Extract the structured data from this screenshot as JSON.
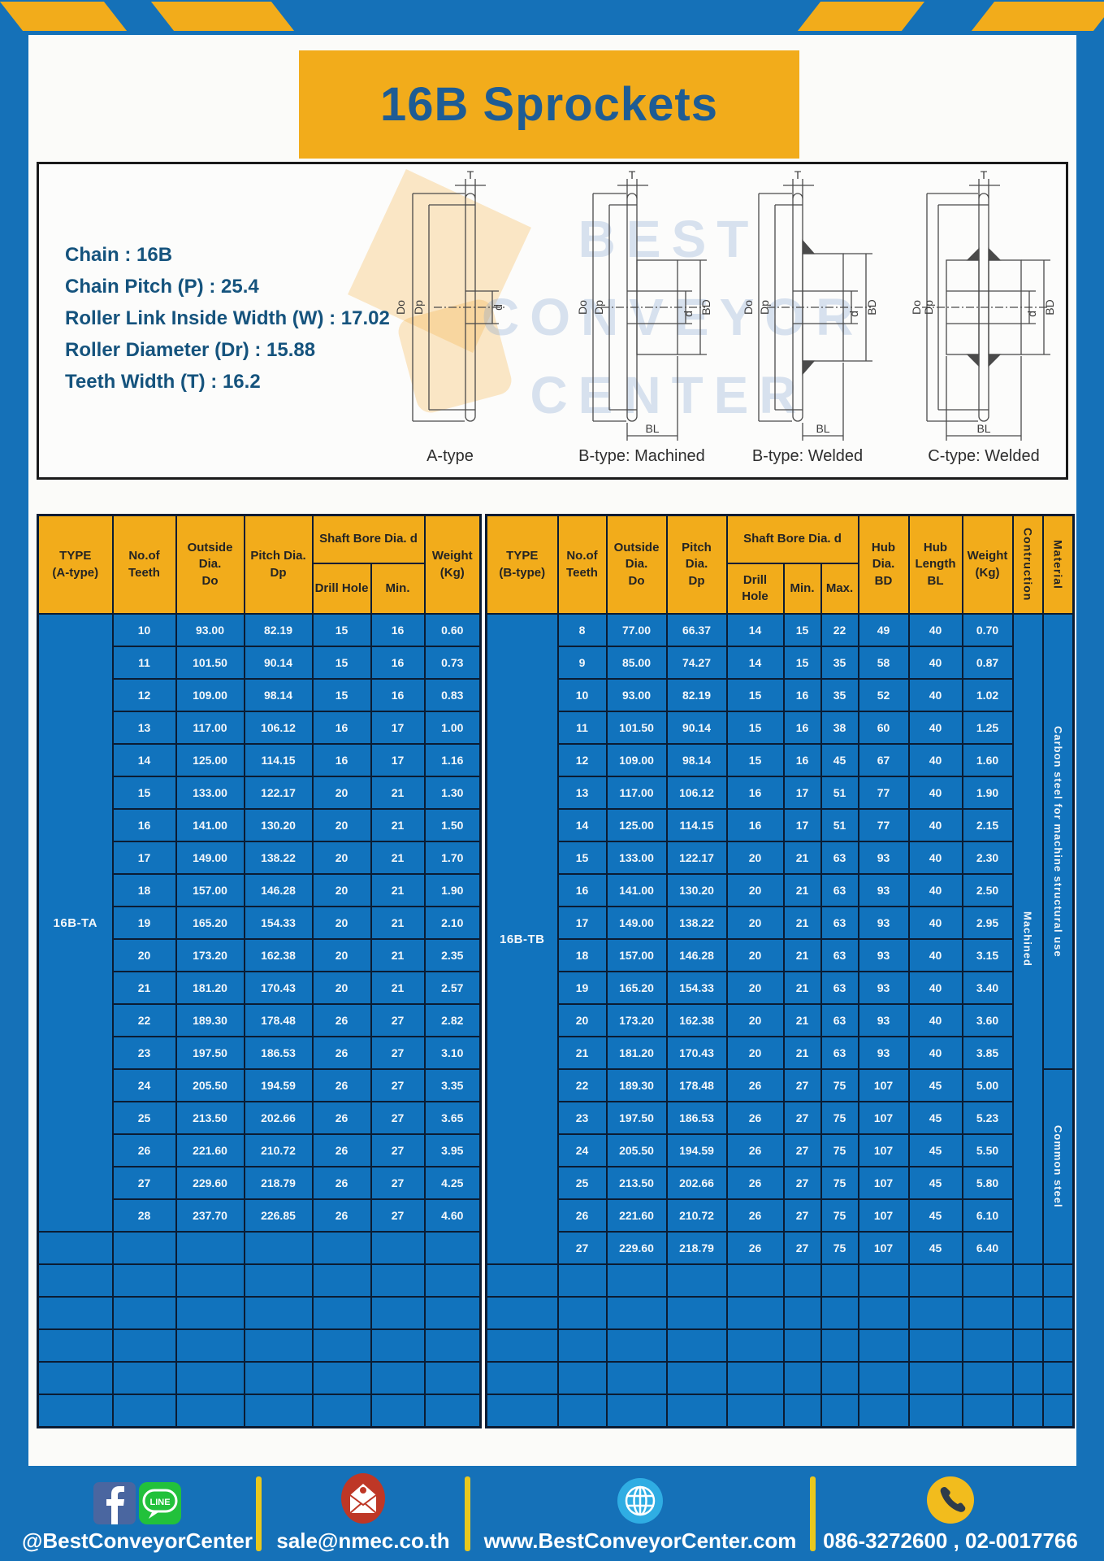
{
  "banner": {
    "title": "16B Sprockets"
  },
  "specs": {
    "lines": [
      "Chain : 16B",
      "Chain Pitch (P) : 25.4",
      "Roller Link Inside Width (W) : 17.02",
      "Roller Diameter (Dr) : 15.88",
      "Teeth Width (T) : 16.2"
    ]
  },
  "diagram": {
    "captions": [
      "A-type",
      "B-type: Machined",
      "B-type: Welded",
      "C-type: Welded"
    ],
    "dims": {
      "t": "T",
      "do": "Do",
      "dp": "Dp",
      "d": "d",
      "bd": "BD",
      "bl": "BL"
    },
    "watermark": {
      "line1": "BEST",
      "line2": "CONVEYOR",
      "line3": "CENTER"
    }
  },
  "table_a": {
    "headers": {
      "type": "TYPE\n(A-type)",
      "teeth": "No.of\nTeeth",
      "outside": "Outside\nDia.\nDo",
      "pitch": "Pitch Dia.\nDp",
      "shaft_bore": "Shaft Bore Dia. d",
      "drill": "Drill Hole",
      "min": "Min.",
      "weight": "Weight\n(Kg)"
    },
    "type_label": "16B-TA",
    "rows": [
      [
        "10",
        "93.00",
        "82.19",
        "15",
        "16",
        "0.60"
      ],
      [
        "11",
        "101.50",
        "90.14",
        "15",
        "16",
        "0.73"
      ],
      [
        "12",
        "109.00",
        "98.14",
        "15",
        "16",
        "0.83"
      ],
      [
        "13",
        "117.00",
        "106.12",
        "16",
        "17",
        "1.00"
      ],
      [
        "14",
        "125.00",
        "114.15",
        "16",
        "17",
        "1.16"
      ],
      [
        "15",
        "133.00",
        "122.17",
        "20",
        "21",
        "1.30"
      ],
      [
        "16",
        "141.00",
        "130.20",
        "20",
        "21",
        "1.50"
      ],
      [
        "17",
        "149.00",
        "138.22",
        "20",
        "21",
        "1.70"
      ],
      [
        "18",
        "157.00",
        "146.28",
        "20",
        "21",
        "1.90"
      ],
      [
        "19",
        "165.20",
        "154.33",
        "20",
        "21",
        "2.10"
      ],
      [
        "20",
        "173.20",
        "162.38",
        "20",
        "21",
        "2.35"
      ],
      [
        "21",
        "181.20",
        "170.43",
        "20",
        "21",
        "2.57"
      ],
      [
        "22",
        "189.30",
        "178.48",
        "26",
        "27",
        "2.82"
      ],
      [
        "23",
        "197.50",
        "186.53",
        "26",
        "27",
        "3.10"
      ],
      [
        "24",
        "205.50",
        "194.59",
        "26",
        "27",
        "3.35"
      ],
      [
        "25",
        "213.50",
        "202.66",
        "26",
        "27",
        "3.65"
      ],
      [
        "26",
        "221.60",
        "210.72",
        "26",
        "27",
        "3.95"
      ],
      [
        "27",
        "229.60",
        "218.79",
        "26",
        "27",
        "4.25"
      ],
      [
        "28",
        "237.70",
        "226.85",
        "26",
        "27",
        "4.60"
      ]
    ],
    "empty_rows": 6
  },
  "table_b": {
    "headers": {
      "type": "TYPE\n(B-type)",
      "teeth": "No.of\nTeeth",
      "outside": "Outside\nDia.\nDo",
      "pitch": "Pitch Dia.\nDp",
      "shaft_bore": "Shaft Bore Dia. d",
      "drill": "Drill Hole",
      "min": "Min.",
      "max": "Max.",
      "hub_dia": "Hub Dia.\nBD",
      "hub_len": "Hub\nLength\nBL",
      "weight": "Weight\n(Kg)",
      "construction": "Contruction",
      "material": "Material"
    },
    "type_label": "16B-TB",
    "rows": [
      [
        "8",
        "77.00",
        "66.37",
        "14",
        "15",
        "22",
        "49",
        "40",
        "0.70"
      ],
      [
        "9",
        "85.00",
        "74.27",
        "14",
        "15",
        "35",
        "58",
        "40",
        "0.87"
      ],
      [
        "10",
        "93.00",
        "82.19",
        "15",
        "16",
        "35",
        "52",
        "40",
        "1.02"
      ],
      [
        "11",
        "101.50",
        "90.14",
        "15",
        "16",
        "38",
        "60",
        "40",
        "1.25"
      ],
      [
        "12",
        "109.00",
        "98.14",
        "15",
        "16",
        "45",
        "67",
        "40",
        "1.60"
      ],
      [
        "13",
        "117.00",
        "106.12",
        "16",
        "17",
        "51",
        "77",
        "40",
        "1.90"
      ],
      [
        "14",
        "125.00",
        "114.15",
        "16",
        "17",
        "51",
        "77",
        "40",
        "2.15"
      ],
      [
        "15",
        "133.00",
        "122.17",
        "20",
        "21",
        "63",
        "93",
        "40",
        "2.30"
      ],
      [
        "16",
        "141.00",
        "130.20",
        "20",
        "21",
        "63",
        "93",
        "40",
        "2.50"
      ],
      [
        "17",
        "149.00",
        "138.22",
        "20",
        "21",
        "63",
        "93",
        "40",
        "2.95"
      ],
      [
        "18",
        "157.00",
        "146.28",
        "20",
        "21",
        "63",
        "93",
        "40",
        "3.15"
      ],
      [
        "19",
        "165.20",
        "154.33",
        "20",
        "21",
        "63",
        "93",
        "40",
        "3.40"
      ],
      [
        "20",
        "173.20",
        "162.38",
        "20",
        "21",
        "63",
        "93",
        "40",
        "3.60"
      ],
      [
        "21",
        "181.20",
        "170.43",
        "20",
        "21",
        "63",
        "93",
        "40",
        "3.85"
      ],
      [
        "22",
        "189.30",
        "178.48",
        "26",
        "27",
        "75",
        "107",
        "45",
        "5.00"
      ],
      [
        "23",
        "197.50",
        "186.53",
        "26",
        "27",
        "75",
        "107",
        "45",
        "5.23"
      ],
      [
        "24",
        "205.50",
        "194.59",
        "26",
        "27",
        "75",
        "107",
        "45",
        "5.50"
      ],
      [
        "25",
        "213.50",
        "202.66",
        "26",
        "27",
        "75",
        "107",
        "45",
        "5.80"
      ],
      [
        "26",
        "221.60",
        "210.72",
        "26",
        "27",
        "75",
        "107",
        "45",
        "6.10"
      ],
      [
        "27",
        "229.60",
        "218.79",
        "26",
        "27",
        "75",
        "107",
        "45",
        "6.40"
      ]
    ],
    "construction_value": "Machined",
    "material_top": "Carbon steel for machine structural use",
    "material_bottom": "Common steel",
    "material_split": 14,
    "empty_rows": 5
  },
  "footer": {
    "facebook_handle": "@BestConveyorCenter",
    "line_label": "LINE",
    "email": "sale@nmec.co.th",
    "website": "www.BestConveyorCenter.com",
    "phone": "086-3272600 , 02-0017766"
  },
  "colors": {
    "frame_blue": "#1571B8",
    "cell_blue": "#1173BD",
    "accent_yellow": "#F2AC1B",
    "grid_dark": "#0B1C33",
    "title_blue": "#1E5C94"
  }
}
